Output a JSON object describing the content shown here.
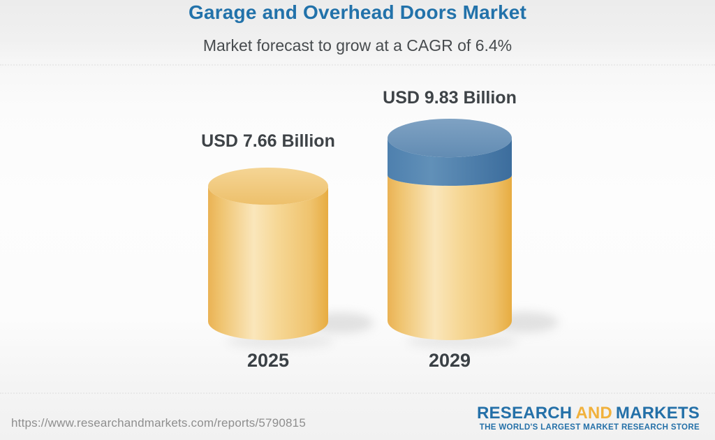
{
  "header": {
    "title": "Garage and Overhead Doors Market",
    "subtitle": "Market forecast to grow at a CAGR of 6.4%"
  },
  "chart_data": {
    "type": "bar",
    "style": "3d-cylinder",
    "title": "Garage and Overhead Doors Market",
    "subtitle": "Market forecast to grow at a CAGR of 6.4%",
    "cagr_percent": 6.4,
    "unit": "USD Billion",
    "categories": [
      "2025",
      "2029"
    ],
    "values": [
      7.66,
      9.83
    ],
    "value_labels": [
      "USD 7.66 Billion",
      "USD 9.83 Billion"
    ],
    "growth_segment": {
      "applies_to": "2029",
      "represents": "growth over 2025 base",
      "value": 2.17,
      "color": "#4E80AE"
    },
    "legend_position": "none",
    "grid": false,
    "colors": {
      "gold_edge": "#EAB254",
      "gold_mid": "#EFC36E",
      "gold_light": "#FAE6BB",
      "gold_soft": "#F6D795",
      "gold_dark": "#E7AC41",
      "gold_top_light": "#F5D595",
      "gold_top_dark": "#EDC06B",
      "blue_edge": "#4E80AE",
      "blue_light": "#6190B8",
      "blue_dark": "#3C6D9D",
      "blue_top_light": "#7FA2C3",
      "blue_top_dark": "#628CB3",
      "shadow": "#c7c7c7"
    }
  },
  "footer": {
    "source_url": "https://www.researchandmarkets.com/reports/5790815",
    "logo": {
      "research": "RESEARCH",
      "and": "AND",
      "markets": "MARKETS",
      "tagline": "THE WORLD'S LARGEST MARKET RESEARCH STORE"
    }
  },
  "brand_colors": {
    "title_blue": "#2272AA",
    "logo_blue": "#2470A8",
    "logo_gold": "#F1B13C",
    "text_dark": "#3E4347",
    "url_gray": "#8E8E8E"
  }
}
